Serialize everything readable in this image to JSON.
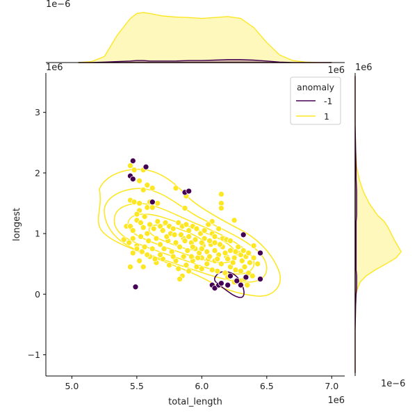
{
  "chart_data": {
    "type": "scatter",
    "title": "",
    "x": {
      "label": "total_length",
      "offset_text": "1e6",
      "range": [
        4.8,
        7.1
      ],
      "ticks": [
        5.0,
        5.5,
        6.0,
        6.5,
        7.0
      ],
      "tick_labels": [
        "5.0",
        "5.5",
        "6.0",
        "6.5",
        "7.0"
      ]
    },
    "y": {
      "label": "longest",
      "offset_text": "1e6",
      "range": [
        -1.35,
        3.65
      ],
      "ticks": [
        -1,
        0,
        1,
        2,
        3
      ],
      "tick_labels": [
        "−1",
        "0",
        "1",
        "2",
        "3"
      ]
    },
    "marginals": {
      "top_offset_text": "1e−6",
      "top_right_offset_text": "1e6",
      "right_top_offset_text": "1e6",
      "right_bottom_offset_text": "1e−6"
    },
    "legend": {
      "title": "anomaly",
      "placement": "top-right",
      "entries": [
        {
          "label": "-1",
          "color": "#440154"
        },
        {
          "label": "1",
          "color": "#fde725"
        }
      ]
    },
    "series": [
      {
        "name": "1",
        "color": "#fde725",
        "points": [
          [
            5.45,
            2.12
          ],
          [
            5.48,
            2.05
          ],
          [
            5.55,
            2.05
          ],
          [
            5.52,
            1.87
          ],
          [
            5.58,
            1.8
          ],
          [
            5.62,
            1.75
          ],
          [
            5.6,
            1.52
          ],
          [
            5.55,
            1.72
          ],
          [
            5.45,
            1.55
          ],
          [
            5.48,
            1.52
          ],
          [
            5.52,
            1.5
          ],
          [
            5.58,
            1.43
          ],
          [
            5.62,
            1.43
          ],
          [
            5.52,
            1.38
          ],
          [
            5.5,
            1.32
          ],
          [
            5.56,
            1.28
          ],
          [
            5.66,
            1.5
          ],
          [
            5.8,
            1.75
          ],
          [
            5.87,
            1.42
          ],
          [
            5.88,
            1.62
          ],
          [
            6.15,
            1.65
          ],
          [
            6.15,
            1.5
          ],
          [
            6.15,
            1.42
          ],
          [
            6.08,
            1.2
          ],
          [
            6.25,
            1.22
          ],
          [
            5.42,
            1.12
          ],
          [
            5.45,
            1.12
          ],
          [
            5.47,
            1.05
          ],
          [
            5.5,
            1.22
          ],
          [
            5.53,
            1.18
          ],
          [
            5.55,
            1.1
          ],
          [
            5.58,
            1.0
          ],
          [
            5.6,
            1.15
          ],
          [
            5.63,
            1.08
          ],
          [
            5.66,
            1.2
          ],
          [
            5.68,
            1.12
          ],
          [
            5.7,
            1.05
          ],
          [
            5.72,
            1.18
          ],
          [
            5.75,
            1.12
          ],
          [
            5.78,
            1.08
          ],
          [
            5.82,
            1.18
          ],
          [
            5.85,
            1.12
          ],
          [
            5.88,
            1.15
          ],
          [
            5.9,
            1.05
          ],
          [
            5.93,
            1.12
          ],
          [
            5.96,
            1.08
          ],
          [
            5.99,
            1.0
          ],
          [
            6.02,
            1.05
          ],
          [
            6.05,
            1.15
          ],
          [
            6.08,
            1.0
          ],
          [
            6.1,
            0.95
          ],
          [
            6.13,
            1.08
          ],
          [
            6.16,
            0.92
          ],
          [
            6.19,
            0.9
          ],
          [
            6.22,
            0.88
          ],
          [
            5.4,
            0.9
          ],
          [
            5.44,
            0.85
          ],
          [
            5.47,
            0.92
          ],
          [
            5.5,
            0.8
          ],
          [
            5.53,
            0.95
          ],
          [
            5.56,
            0.78
          ],
          [
            5.59,
            0.88
          ],
          [
            5.62,
            0.75
          ],
          [
            5.65,
            0.92
          ],
          [
            5.68,
            0.82
          ],
          [
            5.71,
            0.75
          ],
          [
            5.74,
            0.88
          ],
          [
            5.77,
            0.7
          ],
          [
            5.8,
            0.85
          ],
          [
            5.83,
            0.78
          ],
          [
            5.86,
            0.92
          ],
          [
            5.89,
            0.72
          ],
          [
            5.92,
            0.85
          ],
          [
            5.95,
            0.75
          ],
          [
            5.98,
            0.68
          ],
          [
            6.01,
            0.8
          ],
          [
            6.04,
            0.7
          ],
          [
            6.07,
            0.82
          ],
          [
            6.1,
            0.72
          ],
          [
            6.13,
            0.65
          ],
          [
            6.16,
            0.78
          ],
          [
            6.19,
            0.62
          ],
          [
            6.22,
            0.72
          ],
          [
            6.25,
            0.6
          ],
          [
            6.28,
            0.68
          ],
          [
            6.31,
            0.55
          ],
          [
            6.34,
            0.62
          ],
          [
            6.37,
            0.52
          ],
          [
            6.4,
            0.8
          ],
          [
            6.43,
            0.5
          ],
          [
            5.45,
            0.45
          ],
          [
            5.52,
            0.55
          ],
          [
            5.55,
            0.45
          ],
          [
            5.6,
            0.62
          ],
          [
            5.65,
            0.52
          ],
          [
            5.7,
            0.58
          ],
          [
            5.75,
            0.48
          ],
          [
            5.8,
            0.55
          ],
          [
            5.82,
            0.42
          ],
          [
            5.85,
            0.3
          ],
          [
            5.88,
            0.48
          ],
          [
            5.9,
            0.38
          ],
          [
            5.93,
            0.55
          ],
          [
            5.96,
            0.45
          ],
          [
            6.0,
            0.42
          ],
          [
            6.04,
            0.5
          ],
          [
            6.08,
            0.4
          ],
          [
            6.12,
            0.38
          ],
          [
            6.18,
            0.35
          ],
          [
            6.22,
            0.45
          ],
          [
            6.26,
            0.4
          ],
          [
            6.3,
            0.38
          ],
          [
            6.33,
            0.45
          ],
          [
            6.36,
            0.35
          ],
          [
            6.39,
            0.3
          ],
          [
            6.2,
            0.28
          ],
          [
            6.25,
            0.2
          ],
          [
            6.3,
            0.22
          ],
          [
            6.33,
            0.25
          ],
          [
            6.35,
            0.15
          ],
          [
            5.83,
            0.25
          ],
          [
            5.92,
            0.62
          ],
          [
            6.0,
            0.6
          ],
          [
            6.05,
            0.58
          ],
          [
            6.1,
            0.55
          ],
          [
            6.15,
            0.5
          ],
          [
            6.2,
            0.58
          ],
          [
            6.24,
            0.52
          ],
          [
            6.28,
            0.78
          ],
          [
            5.73,
            0.95
          ],
          [
            5.76,
            1.0
          ],
          [
            5.79,
            0.98
          ],
          [
            5.84,
            0.98
          ],
          [
            5.87,
            0.88
          ],
          [
            5.9,
            0.95
          ],
          [
            6.02,
            0.92
          ],
          [
            6.06,
            0.88
          ],
          [
            6.1,
            0.85
          ],
          [
            6.14,
            0.82
          ],
          [
            5.68,
            0.65
          ],
          [
            5.64,
            0.58
          ],
          [
            5.58,
            0.65
          ],
          [
            5.54,
            0.7
          ],
          [
            5.5,
            0.75
          ],
          [
            5.47,
            0.68
          ],
          [
            6.0,
            0.75
          ],
          [
            6.06,
            0.62
          ],
          [
            6.12,
            0.58
          ],
          [
            6.18,
            0.68
          ],
          [
            6.26,
            0.7
          ],
          [
            6.3,
            0.65
          ],
          [
            6.32,
            0.72
          ],
          [
            6.36,
            0.68
          ],
          [
            6.4,
            0.6
          ],
          [
            5.95,
            0.9
          ],
          [
            6.0,
            0.85
          ],
          [
            5.93,
            0.78
          ],
          [
            5.97,
            0.6
          ],
          [
            5.86,
            0.62
          ],
          [
            5.78,
            0.62
          ]
        ]
      },
      {
        "name": "-1",
        "color": "#440154",
        "points": [
          [
            5.47,
            2.2
          ],
          [
            5.57,
            2.1
          ],
          [
            5.45,
            1.95
          ],
          [
            5.47,
            1.9
          ],
          [
            5.87,
            1.68
          ],
          [
            5.9,
            1.7
          ],
          [
            5.62,
            1.52
          ],
          [
            6.32,
            0.98
          ],
          [
            6.45,
            0.68
          ],
          [
            6.45,
            0.25
          ],
          [
            5.49,
            0.12
          ],
          [
            6.08,
            0.15
          ],
          [
            6.1,
            0.1
          ],
          [
            6.13,
            0.15
          ],
          [
            6.15,
            0.18
          ],
          [
            6.2,
            0.15
          ],
          [
            6.22,
            0.3
          ],
          [
            6.27,
            0.22
          ],
          [
            6.3,
            0.15
          ],
          [
            6.34,
            0.28
          ]
        ]
      }
    ],
    "top_marginal": {
      "x": [
        5.05,
        5.15,
        5.25,
        5.35,
        5.45,
        5.5,
        5.55,
        5.6,
        5.7,
        5.8,
        5.9,
        6.0,
        6.1,
        6.2,
        6.3,
        6.4,
        6.5,
        6.6,
        6.7,
        6.8,
        6.9,
        7.0
      ],
      "density_1": [
        0.0,
        0.02,
        0.12,
        0.55,
        0.88,
        0.98,
        1.0,
        0.98,
        0.93,
        0.91,
        0.9,
        0.88,
        0.9,
        0.92,
        0.88,
        0.7,
        0.4,
        0.15,
        0.04,
        0.01,
        0.0,
        0.0
      ],
      "density_neg1": [
        0.0,
        0.0,
        0.01,
        0.02,
        0.03,
        0.04,
        0.04,
        0.03,
        0.03,
        0.03,
        0.04,
        0.04,
        0.05,
        0.06,
        0.06,
        0.05,
        0.03,
        0.01,
        0.0,
        0.0,
        0.0,
        0.0
      ]
    },
    "right_marginal": {
      "y": [
        -1.3,
        -1.0,
        -0.6,
        -0.2,
        0.0,
        0.1,
        0.2,
        0.3,
        0.4,
        0.5,
        0.6,
        0.7,
        0.8,
        0.9,
        1.0,
        1.1,
        1.2,
        1.3,
        1.5,
        1.7,
        1.9,
        2.1,
        2.4,
        2.8,
        3.2,
        3.6
      ],
      "density_1": [
        0.0,
        0.0,
        0.0,
        0.01,
        0.02,
        0.05,
        0.1,
        0.22,
        0.4,
        0.62,
        0.82,
        0.92,
        0.85,
        0.78,
        0.72,
        0.66,
        0.58,
        0.45,
        0.28,
        0.16,
        0.08,
        0.03,
        0.01,
        0.0,
        0.0,
        0.0
      ],
      "density_neg1": [
        0.0,
        0.0,
        0.0,
        0.01,
        0.02,
        0.03,
        0.03,
        0.03,
        0.02,
        0.02,
        0.02,
        0.02,
        0.02,
        0.02,
        0.02,
        0.02,
        0.02,
        0.03,
        0.03,
        0.03,
        0.02,
        0.02,
        0.01,
        0.0,
        0.0,
        0.0
      ]
    }
  }
}
